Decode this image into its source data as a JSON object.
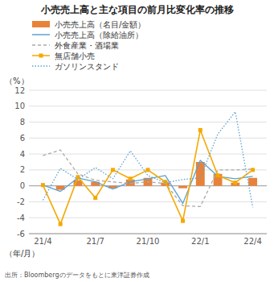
{
  "chart_data": {
    "type": "bar",
    "title": "小売売上高と主な項目の前月比変化率の推移",
    "y_label": "（%）",
    "x_label": "（年/月）",
    "source": "出所：Bloombergのデータをもとに東洋証券作成",
    "categories": [
      "21/4",
      null,
      null,
      "21/7",
      null,
      null,
      "21/10",
      null,
      null,
      "22/1",
      null,
      null,
      "22/4"
    ],
    "ylim": [
      -6,
      12
    ],
    "yticks": [
      -6,
      -4,
      -2,
      0,
      2,
      4,
      6,
      8,
      10,
      12
    ],
    "grid": true,
    "legend": "upper left",
    "series": [
      {
        "name": "小売売上高（名目/金額）",
        "type": "bar",
        "color": "#E8823A",
        "values": [
          0.0,
          -0.5,
          0.7,
          0.5,
          -0.3,
          0.8,
          1.0,
          0.4,
          -0.3,
          3.0,
          1.5,
          0.4,
          1.0
        ]
      },
      {
        "name": "小売売上高（除給油所）",
        "type": "line",
        "color": "#5BA3D0",
        "line_style": "solid",
        "values": [
          0.1,
          -0.7,
          1.0,
          0.5,
          -0.4,
          0.5,
          0.9,
          1.3,
          -2.2,
          3.2,
          1.2,
          0.9,
          1.2
        ]
      },
      {
        "name": "外食産業・酒場業",
        "type": "line",
        "color": "#AAAAAA",
        "line_style": "dashed",
        "values": [
          3.8,
          4.5,
          1.5,
          0.7,
          0.5,
          0.3,
          0.5,
          0.3,
          -2.5,
          -2.6,
          2.0,
          2.0,
          2.1
        ]
      },
      {
        "name": "無店舗小売",
        "type": "line",
        "color": "#F5A800",
        "line_style": "solid",
        "marker": "square",
        "values": [
          0.1,
          -4.8,
          1.1,
          -1.5,
          2.0,
          0.9,
          2.0,
          0.5,
          -4.4,
          7.0,
          1.3,
          0.4,
          2.0
        ]
      },
      {
        "name": "ガソリンスタンド",
        "type": "line",
        "color": "#5BA3D0",
        "line_style": "dotted",
        "values": [
          -1.8,
          2.2,
          0.8,
          2.3,
          0.9,
          4.4,
          1.3,
          0.4,
          0.8,
          1.0,
          6.5,
          9.3,
          -2.7
        ]
      }
    ]
  }
}
